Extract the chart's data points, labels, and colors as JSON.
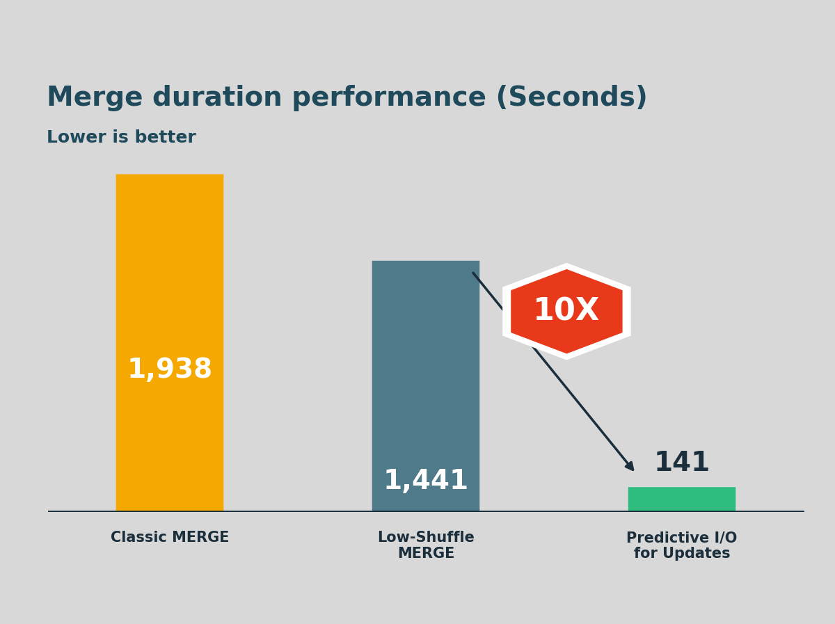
{
  "title": "Merge duration performance (Seconds)",
  "subtitle": "Lower is better",
  "categories": [
    "Classic MERGE",
    "Low-Shuffle\nMERGE",
    "Predictive I/O\nfor Updates"
  ],
  "values": [
    1938,
    1441,
    141
  ],
  "value_labels": [
    "1,938",
    "1,441",
    "141"
  ],
  "bar_colors": [
    "#F5A800",
    "#4E7A8A",
    "#2EBD7E"
  ],
  "background_color": "#D8D8D8",
  "title_color": "#1E4A5C",
  "subtitle_color": "#1E4A5C",
  "value_label_color_inside": "#FFFFFF",
  "value_label_color_outside": "#1A2E3B",
  "axis_line_color": "#1A2E3B",
  "arrow_color": "#1A2E3B",
  "badge_color": "#E8391A",
  "badge_border_color": "#FFFFFF",
  "badge_text_color": "#FFFFFF",
  "badge_text": "10X",
  "ylim": [
    0,
    2150
  ],
  "bar_width": 0.42
}
